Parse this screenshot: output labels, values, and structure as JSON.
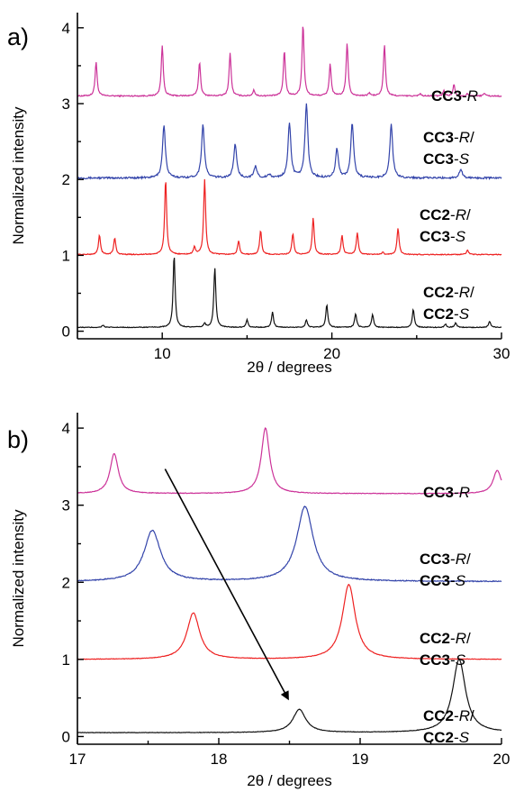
{
  "chart_data": [
    {
      "panel": "a)",
      "type": "line",
      "xlabel": "2θ / degrees",
      "ylabel": "Normalized intensity",
      "xlim": [
        5,
        30
      ],
      "ylim": [
        -0.1,
        4.2
      ],
      "xticks": [
        10,
        20,
        30
      ],
      "yticks": [
        0,
        1,
        2,
        3,
        4
      ],
      "series": [
        {
          "color": "#cc3399",
          "baseline": 3.1,
          "noise": 0.008,
          "width": 0.07,
          "label": [
            {
              "text": "CC3",
              "style": "b"
            },
            {
              "text": "-",
              "style": ""
            },
            {
              "text": "R",
              "style": "i"
            }
          ],
          "peaks": [
            [
              6.1,
              0.45
            ],
            [
              10.0,
              0.67
            ],
            [
              12.2,
              0.45
            ],
            [
              14.0,
              0.57
            ],
            [
              15.4,
              0.08
            ],
            [
              17.2,
              0.6
            ],
            [
              18.3,
              0.95
            ],
            [
              19.9,
              0.42
            ],
            [
              20.9,
              0.7
            ],
            [
              22.2,
              0.04
            ],
            [
              23.1,
              0.68
            ],
            [
              25.2,
              0.03
            ],
            [
              26.6,
              0.07
            ],
            [
              27.2,
              0.15
            ],
            [
              28.0,
              0.03
            ],
            [
              29.0,
              0.04
            ]
          ]
        },
        {
          "color": "#3344aa",
          "baseline": 2.02,
          "noise": 0.012,
          "width": 0.1,
          "label": [
            {
              "text": "CC3",
              "style": "b"
            },
            {
              "text": "-",
              "style": ""
            },
            {
              "text": "R",
              "style": "i"
            },
            {
              "text": "/",
              "style": ""
            },
            {
              "text": "|",
              "style": "br"
            },
            {
              "text": "CC3",
              "style": "b"
            },
            {
              "text": "-",
              "style": ""
            },
            {
              "text": "S",
              "style": "i"
            }
          ],
          "peaks": [
            [
              10.1,
              0.7
            ],
            [
              12.4,
              0.7
            ],
            [
              14.3,
              0.45
            ],
            [
              15.5,
              0.15
            ],
            [
              16.3,
              0.04
            ],
            [
              17.5,
              0.72
            ],
            [
              18.5,
              0.98
            ],
            [
              20.3,
              0.38
            ],
            [
              21.2,
              0.72
            ],
            [
              23.5,
              0.7
            ],
            [
              27.6,
              0.12
            ]
          ]
        },
        {
          "color": "#ee2222",
          "baseline": 1.01,
          "noise": 0.006,
          "width": 0.07,
          "label": [
            {
              "text": "CC2",
              "style": "b"
            },
            {
              "text": "-",
              "style": ""
            },
            {
              "text": "R",
              "style": "i"
            },
            {
              "text": "/",
              "style": ""
            },
            {
              "text": "|",
              "style": "br"
            },
            {
              "text": "CC3",
              "style": "b"
            },
            {
              "text": "-",
              "style": ""
            },
            {
              "text": "S",
              "style": "i"
            }
          ],
          "peaks": [
            [
              6.3,
              0.26
            ],
            [
              7.2,
              0.22
            ],
            [
              10.2,
              0.99
            ],
            [
              11.9,
              0.1
            ],
            [
              12.5,
              0.99
            ],
            [
              14.5,
              0.18
            ],
            [
              15.8,
              0.32
            ],
            [
              17.7,
              0.27
            ],
            [
              18.9,
              0.48
            ],
            [
              20.6,
              0.25
            ],
            [
              21.5,
              0.29
            ],
            [
              23.0,
              0.03
            ],
            [
              23.9,
              0.35
            ],
            [
              28.0,
              0.06
            ]
          ]
        },
        {
          "color": "#111111",
          "baseline": 0.05,
          "noise": 0.005,
          "width": 0.07,
          "label": [
            {
              "text": "CC2",
              "style": "b"
            },
            {
              "text": "-",
              "style": ""
            },
            {
              "text": "R",
              "style": "i"
            },
            {
              "text": "/",
              "style": ""
            },
            {
              "text": "|",
              "style": "br"
            },
            {
              "text": "CC2",
              "style": "b"
            },
            {
              "text": "-",
              "style": ""
            },
            {
              "text": "S",
              "style": "i"
            }
          ],
          "peaks": [
            [
              6.5,
              0.03
            ],
            [
              10.7,
              0.95
            ],
            [
              12.5,
              0.05
            ],
            [
              13.1,
              0.79
            ],
            [
              15.0,
              0.1
            ],
            [
              16.5,
              0.2
            ],
            [
              18.5,
              0.1
            ],
            [
              19.7,
              0.3
            ],
            [
              21.4,
              0.18
            ],
            [
              22.4,
              0.17
            ],
            [
              24.8,
              0.24
            ],
            [
              26.7,
              0.04
            ],
            [
              27.3,
              0.06
            ],
            [
              29.3,
              0.08
            ]
          ]
        }
      ]
    },
    {
      "panel": "b)",
      "type": "line",
      "xlabel": "2θ / degrees",
      "ylabel": "Normalized intensity",
      "xlim": [
        17,
        20
      ],
      "ylim": [
        -0.1,
        4.2
      ],
      "xticks": [
        17,
        18,
        19,
        20
      ],
      "yticks": [
        0,
        1,
        2,
        3,
        4
      ],
      "arrow": {
        "from": [
          17.62,
          3.47
        ],
        "to": [
          18.49,
          0.49
        ]
      },
      "series": [
        {
          "color": "#cc3399",
          "baseline": 3.15,
          "noise": 0.004,
          "width": 0.035,
          "label": [
            {
              "text": "CC3",
              "style": "b"
            },
            {
              "text": "-",
              "style": ""
            },
            {
              "text": "R",
              "style": "i"
            }
          ],
          "peaks": [
            [
              17.26,
              0.52
            ],
            [
              18.33,
              0.85
            ],
            [
              19.97,
              0.3
            ]
          ]
        },
        {
          "color": "#3344aa",
          "baseline": 2.01,
          "noise": 0.006,
          "width": 0.07,
          "label": [
            {
              "text": "CC3",
              "style": "b"
            },
            {
              "text": "-",
              "style": ""
            },
            {
              "text": "R",
              "style": "i"
            },
            {
              "text": "/",
              "style": ""
            },
            {
              "text": "|",
              "style": "br"
            },
            {
              "text": "CC3",
              "style": "b"
            },
            {
              "text": "-",
              "style": ""
            },
            {
              "text": "S",
              "style": "i"
            }
          ],
          "peaks": [
            [
              17.53,
              0.66
            ],
            [
              18.61,
              0.97
            ]
          ]
        },
        {
          "color": "#ee2222",
          "baseline": 1.0,
          "noise": 0.003,
          "width": 0.055,
          "label": [
            {
              "text": "CC2",
              "style": "b"
            },
            {
              "text": "-",
              "style": ""
            },
            {
              "text": "R",
              "style": "i"
            },
            {
              "text": "/",
              "style": ""
            },
            {
              "text": "|",
              "style": "br"
            },
            {
              "text": "CC3",
              "style": "b"
            },
            {
              "text": "-",
              "style": ""
            },
            {
              "text": "S",
              "style": "i"
            }
          ],
          "peaks": [
            [
              17.82,
              0.6
            ],
            [
              18.92,
              0.97
            ]
          ]
        },
        {
          "color": "#111111",
          "baseline": 0.05,
          "noise": 0.003,
          "width": 0.055,
          "label": [
            {
              "text": "CC2",
              "style": "b"
            },
            {
              "text": "-",
              "style": ""
            },
            {
              "text": "R",
              "style": "i"
            },
            {
              "text": "/",
              "style": ""
            },
            {
              "text": "|",
              "style": "br"
            },
            {
              "text": "CC2",
              "style": "b"
            },
            {
              "text": "-",
              "style": ""
            },
            {
              "text": "S",
              "style": "i"
            }
          ],
          "peaks": [
            [
              18.57,
              0.3
            ],
            [
              19.7,
              0.95
            ]
          ]
        }
      ]
    }
  ]
}
